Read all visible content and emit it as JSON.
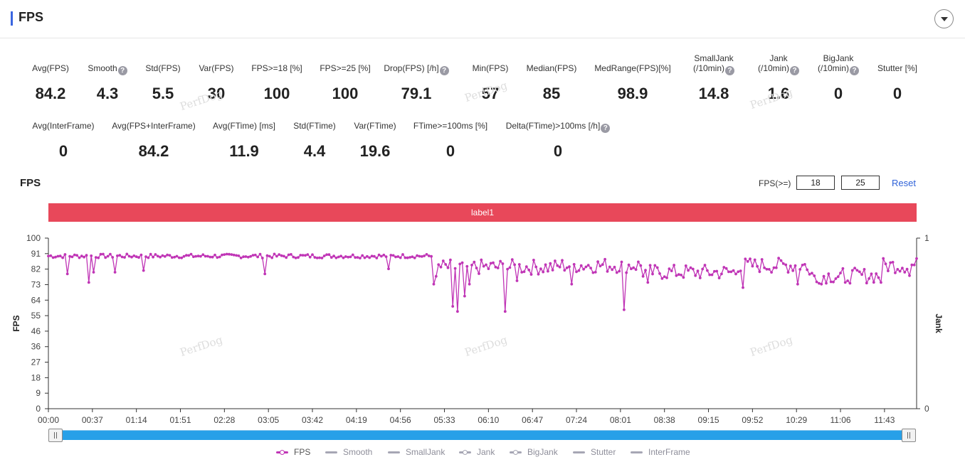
{
  "panel": {
    "title": "FPS",
    "collapse_icon": "chevron-down-icon"
  },
  "metrics_row1": [
    {
      "label": "Avg(FPS)",
      "value": "84.2",
      "help": false
    },
    {
      "label": "Smooth",
      "value": "4.3",
      "help": true
    },
    {
      "label": "Std(FPS)",
      "value": "5.5",
      "help": false
    },
    {
      "label": "Var(FPS)",
      "value": "30",
      "help": false
    },
    {
      "label": "FPS>=18 [%]",
      "value": "100",
      "help": false
    },
    {
      "label": "FPS>=25 [%]",
      "value": "100",
      "help": false
    },
    {
      "label": "Drop(FPS) [/h]",
      "value": "79.1",
      "help": true
    },
    {
      "label": "Min(FPS)",
      "value": "57",
      "help": false
    },
    {
      "label": "Median(FPS)",
      "value": "85",
      "help": false
    },
    {
      "label": "MedRange(FPS)[%]",
      "value": "98.9",
      "help": false
    },
    {
      "label": "SmallJank",
      "label2": "(/10min)",
      "value": "14.8",
      "help": true
    },
    {
      "label": "Jank",
      "label2": "(/10min)",
      "value": "1.6",
      "help": true
    },
    {
      "label": "BigJank",
      "label2": "(/10min)",
      "value": "0",
      "help": true
    },
    {
      "label": "Stutter [%]",
      "value": "0",
      "help": false
    }
  ],
  "metrics_row2": [
    {
      "label": "Avg(InterFrame)",
      "value": "0",
      "help": false
    },
    {
      "label": "Avg(FPS+InterFrame)",
      "value": "84.2",
      "help": false
    },
    {
      "label": "Avg(FTime) [ms]",
      "value": "11.9",
      "help": false
    },
    {
      "label": "Std(FTime)",
      "value": "4.4",
      "help": false
    },
    {
      "label": "Var(FTime)",
      "value": "19.6",
      "help": false
    },
    {
      "label": "FTime>=100ms [%]",
      "value": "0",
      "help": false
    },
    {
      "label": "Delta(FTime)>100ms [/h]",
      "value": "0",
      "help": true
    }
  ],
  "watermark_text": "PerfDog",
  "chart_panel": {
    "title": "FPS",
    "threshold_label": "FPS(>=)",
    "threshold_low": "18",
    "threshold_high": "25",
    "reset_label": "Reset",
    "label_bar": "label1",
    "label_bar_color": "#e8485a"
  },
  "chart_data": {
    "type": "line",
    "ylabel": "FPS",
    "y2label": "Jank",
    "ylim": [
      0,
      100
    ],
    "yticks": [
      "100",
      "91",
      "82",
      "73",
      "64",
      "55",
      "46",
      "36",
      "27",
      "18",
      "9",
      "0"
    ],
    "y2lim": [
      0,
      1
    ],
    "y2ticks": [
      "1",
      "0"
    ],
    "xlim_seconds": [
      0,
      730
    ],
    "xticks": [
      "00:00",
      "00:37",
      "01:14",
      "01:51",
      "02:28",
      "03:05",
      "03:42",
      "04:19",
      "04:56",
      "05:33",
      "06:10",
      "06:47",
      "07:24",
      "08:01",
      "08:38",
      "09:15",
      "09:52",
      "10:29",
      "11:06",
      "11:43"
    ],
    "grid": false,
    "series": [
      {
        "name": "FPS",
        "color": "#c035b6",
        "baseline_segments": [
          {
            "t_from": 0,
            "t_to": 323,
            "fps": 89.5
          },
          {
            "t_from": 323,
            "t_to": 324,
            "fps": 84
          },
          {
            "t_from": 324,
            "t_to": 328,
            "fps": 74
          },
          {
            "t_from": 328,
            "t_to": 390,
            "fps": 83
          },
          {
            "t_from": 390,
            "t_to": 430,
            "fps": 83
          },
          {
            "t_from": 430,
            "t_to": 500,
            "fps": 84
          },
          {
            "t_from": 500,
            "t_to": 580,
            "fps": 80
          },
          {
            "t_from": 580,
            "t_to": 640,
            "fps": 84
          },
          {
            "t_from": 640,
            "t_to": 700,
            "fps": 78
          },
          {
            "t_from": 700,
            "t_to": 730,
            "fps": 84
          }
        ],
        "dips": [
          {
            "t": 16,
            "fps": 79
          },
          {
            "t": 34,
            "fps": 74
          },
          {
            "t": 38,
            "fps": 80
          },
          {
            "t": 56,
            "fps": 80
          },
          {
            "t": 80,
            "fps": 81
          },
          {
            "t": 183,
            "fps": 79
          },
          {
            "t": 287,
            "fps": 82
          },
          {
            "t": 324,
            "fps": 73
          },
          {
            "t": 341,
            "fps": 60
          },
          {
            "t": 344,
            "fps": 57
          },
          {
            "t": 350,
            "fps": 66
          },
          {
            "t": 355,
            "fps": 73
          },
          {
            "t": 385,
            "fps": 57
          },
          {
            "t": 395,
            "fps": 75
          },
          {
            "t": 441,
            "fps": 73
          },
          {
            "t": 485,
            "fps": 58
          },
          {
            "t": 505,
            "fps": 74
          },
          {
            "t": 585,
            "fps": 71
          },
          {
            "t": 630,
            "fps": 73
          },
          {
            "t": 650,
            "fps": 73
          },
          {
            "t": 670,
            "fps": 74
          },
          {
            "t": 700,
            "fps": 74
          },
          {
            "t": 725,
            "fps": 78
          }
        ]
      },
      {
        "name": "Smooth",
        "color": "#a6a6b4"
      },
      {
        "name": "SmallJank",
        "color": "#a6a6b4"
      },
      {
        "name": "Jank",
        "color": "#a6a6b4"
      },
      {
        "name": "BigJank",
        "color": "#a6a6b4"
      },
      {
        "name": "Stutter",
        "color": "#a6a6b4"
      },
      {
        "name": "InterFrame",
        "color": "#a6a6b4"
      }
    ]
  },
  "slider": {
    "start": 0,
    "end": 1
  }
}
